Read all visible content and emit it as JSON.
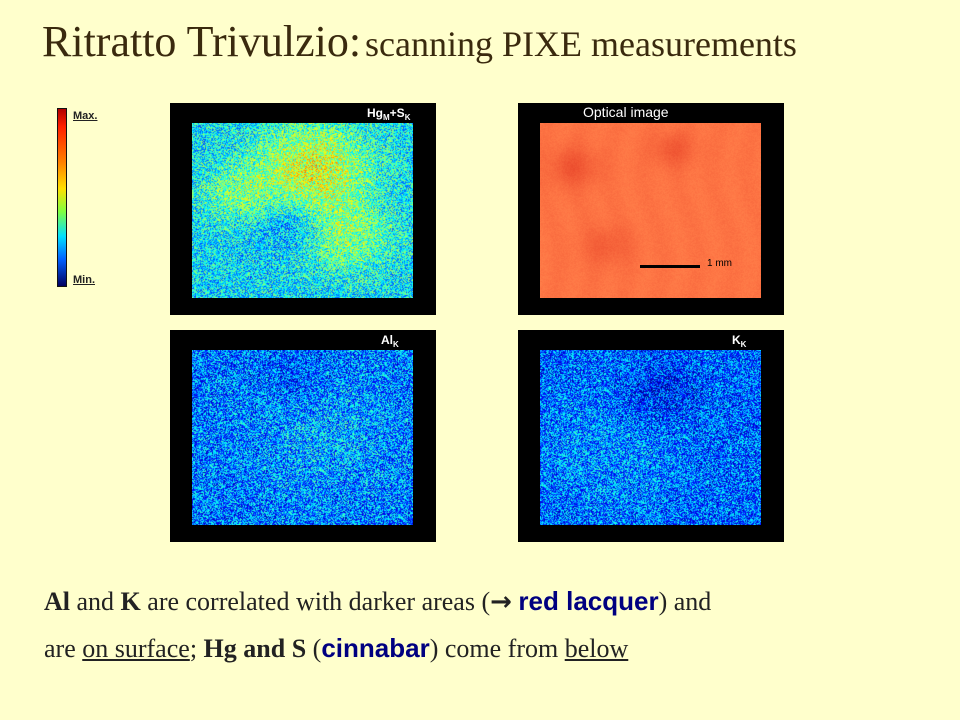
{
  "title": {
    "main": "Ritratto Trivulzio:",
    "sub": "scanning PIXE measurements"
  },
  "color_scale": {
    "max_label": "Max.",
    "min_label": "Min."
  },
  "panels": {
    "hg": {
      "label_a": "Hg",
      "label_a_sub": "M",
      "label_b": "+S",
      "label_b_sub": "K"
    },
    "optical": {
      "label": "Optical image",
      "scale_label": "1 mm"
    },
    "al": {
      "label": "Al",
      "label_sub": "K"
    },
    "k": {
      "label": "K",
      "label_sub": "K"
    }
  },
  "caption": {
    "w1": "Al",
    "w2": " and ",
    "w3": "K",
    "w4": " are correlated with darker areas  (",
    "arrow": "→",
    "w5": "red lacquer",
    "w6": ") and",
    "w7": "are ",
    "w8": "on surface",
    "w9": "; ",
    "w10": "Hg and S",
    "w11": " (",
    "w12": "cinnabar",
    "w13": ") come from ",
    "w14": "below"
  },
  "colors": {
    "background": "#ffffcc",
    "title": "#3a2a0e",
    "highlight_blue": "#000080"
  }
}
